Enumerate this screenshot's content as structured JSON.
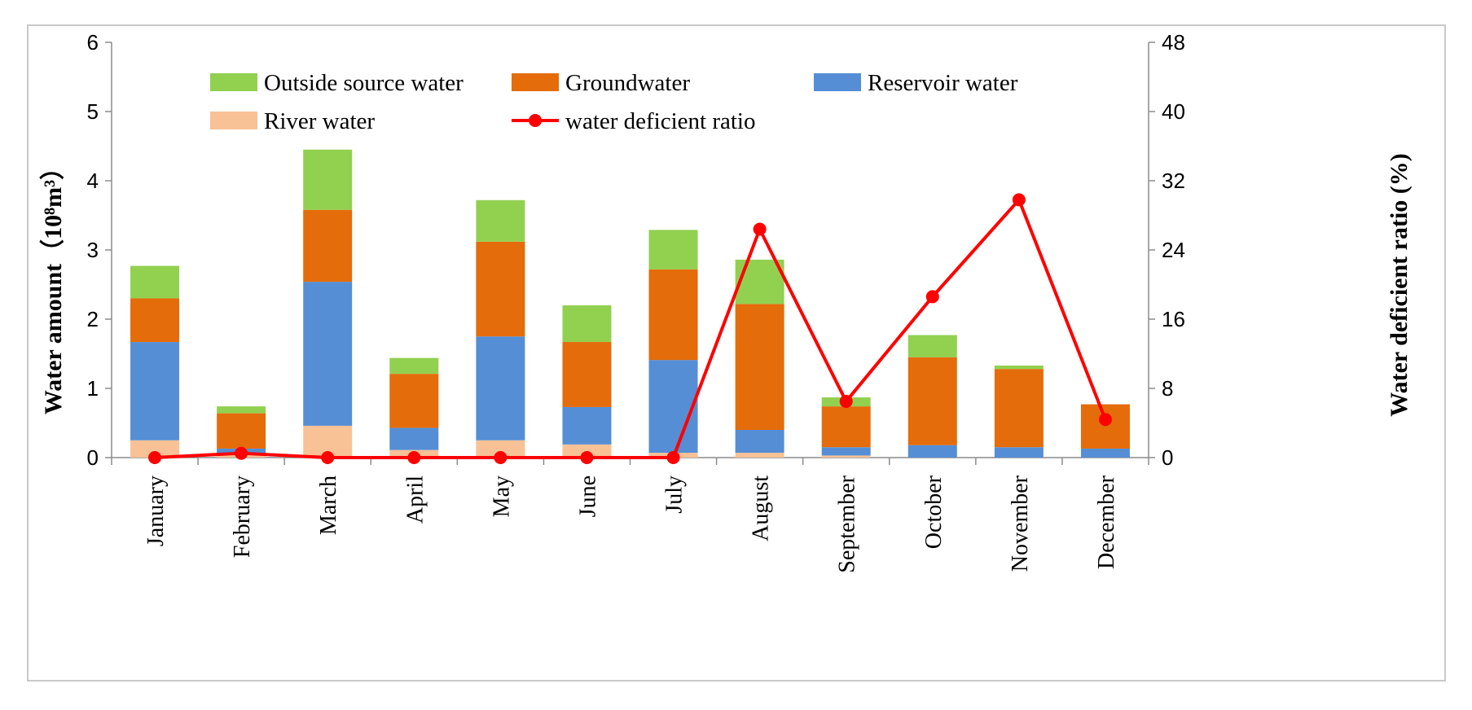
{
  "chart_data": {
    "type": "bar",
    "stacked": true,
    "categories": [
      "January",
      "February",
      "March",
      "April",
      "May",
      "June",
      "July",
      "August",
      "September",
      "October",
      "November",
      "December"
    ],
    "series": [
      {
        "name": "River water",
        "key": "river",
        "color": "#f8c196",
        "values": [
          0.25,
          0.05,
          0.46,
          0.11,
          0.25,
          0.19,
          0.07,
          0.07,
          0.03,
          0.0,
          0.0,
          0.0
        ]
      },
      {
        "name": "Reservoir water",
        "key": "reservoir",
        "color": "#558ed5",
        "values": [
          1.42,
          0.08,
          2.08,
          0.32,
          1.5,
          0.54,
          1.34,
          0.33,
          0.12,
          0.18,
          0.15,
          0.13
        ]
      },
      {
        "name": "Groundwater",
        "key": "groundwater",
        "color": "#e46c0a",
        "values": [
          0.63,
          0.51,
          1.04,
          0.78,
          1.37,
          0.94,
          1.31,
          1.82,
          0.59,
          1.27,
          1.13,
          0.64
        ]
      },
      {
        "name": "Outside source water",
        "key": "outside",
        "color": "#92d050",
        "values": [
          0.47,
          0.1,
          0.87,
          0.23,
          0.6,
          0.53,
          0.57,
          0.64,
          0.13,
          0.32,
          0.05,
          0.0
        ]
      }
    ],
    "line_series": {
      "name": "water deficient ratio",
      "color": "#ff0000",
      "values": [
        0,
        0.5,
        0,
        0,
        0,
        0,
        0,
        26.4,
        6.5,
        18.6,
        29.8,
        4.4
      ]
    },
    "ylabel": "Water amount（10⁸m³）",
    "y2label": "Water deficient ratio (%)",
    "ylim": [
      0,
      6
    ],
    "y2lim": [
      0,
      48
    ],
    "yticks": [
      "0",
      "1",
      "2",
      "3",
      "4",
      "5",
      "6"
    ],
    "y2ticks": [
      "0",
      "8",
      "16",
      "24",
      "32",
      "40",
      "48"
    ],
    "legend_order": [
      "Outside source water",
      "Groundwater",
      "Reservoir water",
      "River water",
      "water deficient ratio"
    ],
    "legend_position": "top-inside"
  }
}
